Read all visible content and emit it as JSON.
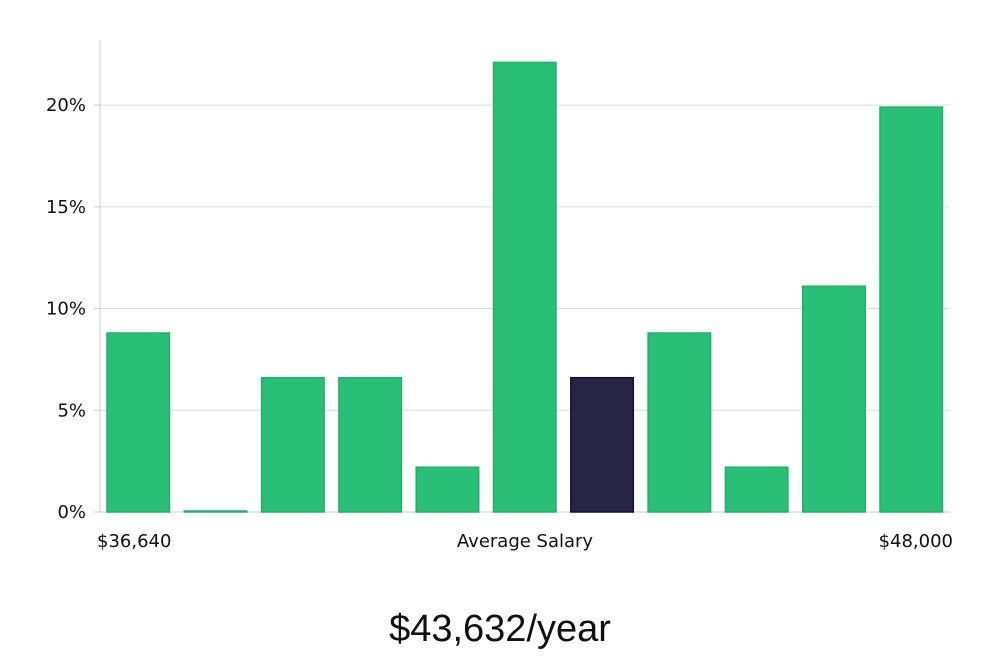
{
  "chart_data": {
    "type": "bar",
    "categories": [
      "1",
      "2",
      "3",
      "4",
      "5",
      "6",
      "7",
      "8",
      "9",
      "10",
      "11"
    ],
    "values": [
      8.8,
      0.05,
      6.6,
      6.6,
      2.2,
      22.1,
      6.6,
      8.8,
      2.2,
      11.1,
      19.9
    ],
    "highlight_index": 6,
    "ylim": [
      0,
      23.2
    ],
    "yticks": [
      0,
      5,
      10,
      15,
      20
    ],
    "ytick_labels": [
      "0%",
      "5%",
      "10%",
      "15%",
      "20%"
    ],
    "x_left_label": "$36,640",
    "x_center_label": "Average Salary",
    "x_right_label": "$48,000",
    "grid": true,
    "colors": {
      "bar": "#2abf76",
      "bar_border": "#22b06a",
      "highlight": "#272546",
      "grid": "#dddddd",
      "axis": "#cccccc"
    }
  },
  "summary": {
    "salary_text": "$43,632/year"
  }
}
